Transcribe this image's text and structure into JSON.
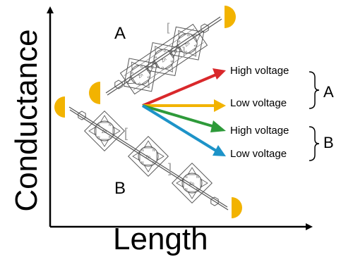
{
  "axes": {
    "x_title": "Length",
    "y_title": "Conductance"
  },
  "molecules": {
    "a_label": "A",
    "b_label": "B"
  },
  "arrows": [
    {
      "label": "High voltage",
      "color": "#d9282b",
      "group": "A"
    },
    {
      "label": "Low voltage",
      "color": "#f2b300",
      "group": "A"
    },
    {
      "label": "High voltage",
      "color": "#2e9a3a",
      "group": "B"
    },
    {
      "label": "Low voltage",
      "color": "#1d93c8",
      "group": "B"
    }
  ],
  "groups": {
    "a_label": "A",
    "b_label": "B"
  },
  "colors": {
    "electrode": "#f2b300",
    "molecule_line": "#555555",
    "axis": "#000000"
  },
  "icons": [
    "gold-electrode-icon",
    "porphyrin-icon",
    "phenyl-ring-icon"
  ]
}
